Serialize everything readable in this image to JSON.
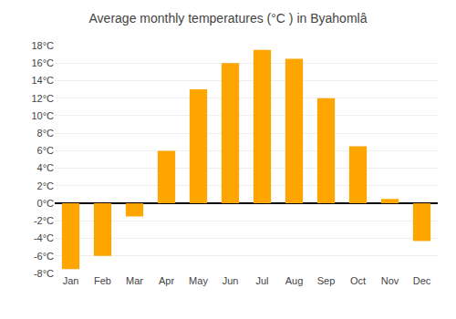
{
  "chart_data": {
    "type": "bar",
    "title": "Average monthly temperatures (°C ) in Byahomlâ",
    "categories": [
      "Jan",
      "Feb",
      "Mar",
      "Apr",
      "May",
      "Jun",
      "Jul",
      "Aug",
      "Sep",
      "Oct",
      "Nov",
      "Dec"
    ],
    "values": [
      -7.5,
      -6.0,
      -1.5,
      6.0,
      13.0,
      16.0,
      17.5,
      16.5,
      12.0,
      6.5,
      0.5,
      -4.3
    ],
    "color": "#FFA500",
    "ylim": [
      -8,
      18
    ],
    "yticks": [
      {
        "value": -8,
        "label": "-8°C"
      },
      {
        "value": -6,
        "label": "-6°C"
      },
      {
        "value": -4,
        "label": "-4°C"
      },
      {
        "value": -2,
        "label": "-2°C"
      },
      {
        "value": 0,
        "label": "0°C"
      },
      {
        "value": 2,
        "label": "2°C"
      },
      {
        "value": 4,
        "label": "4°C"
      },
      {
        "value": 6,
        "label": "6°C"
      },
      {
        "value": 8,
        "label": "8°C"
      },
      {
        "value": 10,
        "label": "10°C"
      },
      {
        "value": 12,
        "label": "12°C"
      },
      {
        "value": 14,
        "label": "14°C"
      },
      {
        "value": 16,
        "label": "16°C"
      },
      {
        "value": 18,
        "label": "18°C"
      }
    ],
    "grid": true
  }
}
